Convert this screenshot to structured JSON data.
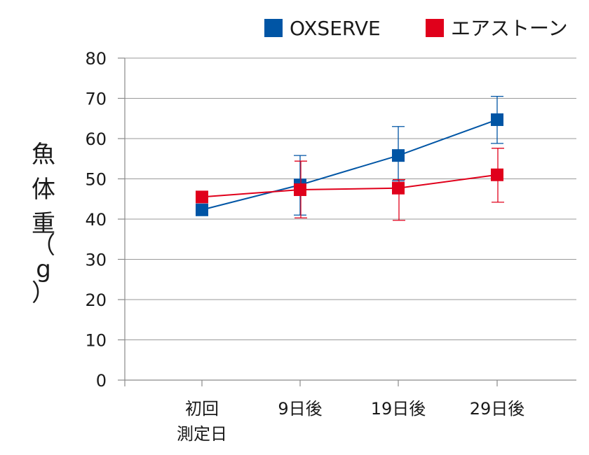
{
  "chart_data": {
    "type": "line",
    "ylabel": [
      "魚",
      "体",
      "重",
      "（",
      "g",
      "）"
    ],
    "ylim": [
      0,
      80
    ],
    "yticks": [
      0,
      10,
      20,
      30,
      40,
      50,
      60,
      70,
      80
    ],
    "categories": [
      [
        "初回",
        "測定日"
      ],
      [
        "9日後"
      ],
      [
        "19日後"
      ],
      [
        "29日後"
      ]
    ],
    "grid": true,
    "legend_position": "top-right",
    "series": [
      {
        "name": "OXSERVE",
        "color": "#0055a5",
        "values": [
          42.3,
          48.5,
          55.8,
          64.7
        ],
        "err_low": [
          null,
          41.0,
          49.5,
          58.8
        ],
        "err_high": [
          null,
          55.8,
          63.0,
          70.5
        ]
      },
      {
        "name": "エアストーン",
        "color": "#e0001b",
        "values": [
          45.5,
          47.3,
          47.7,
          51.0
        ],
        "err_low": [
          null,
          40.3,
          39.7,
          44.2
        ],
        "err_high": [
          null,
          54.4,
          49.8,
          57.6
        ]
      }
    ]
  }
}
